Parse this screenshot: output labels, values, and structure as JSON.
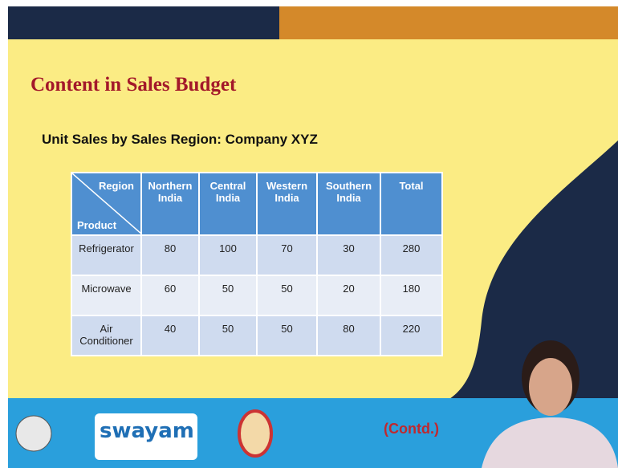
{
  "slide": {
    "title": "Content in Sales Budget",
    "subtitle": "Unit Sales by Sales Region: Company XYZ",
    "table": {
      "corner_top": "Region",
      "corner_bottom": "Product",
      "columns": [
        "Northern India",
        "Central India",
        "Western India",
        "Southern India",
        "Total"
      ],
      "rows": [
        {
          "product": "Refrigerator",
          "values": [
            80,
            100,
            70,
            30,
            280
          ]
        },
        {
          "product": "Microwave",
          "values": [
            60,
            50,
            50,
            20,
            180
          ]
        },
        {
          "product": "Air Conditioner",
          "values": [
            40,
            50,
            50,
            80,
            220
          ]
        }
      ]
    },
    "footer": {
      "logo_text": "swayam",
      "contd": "(Contd.)"
    }
  }
}
